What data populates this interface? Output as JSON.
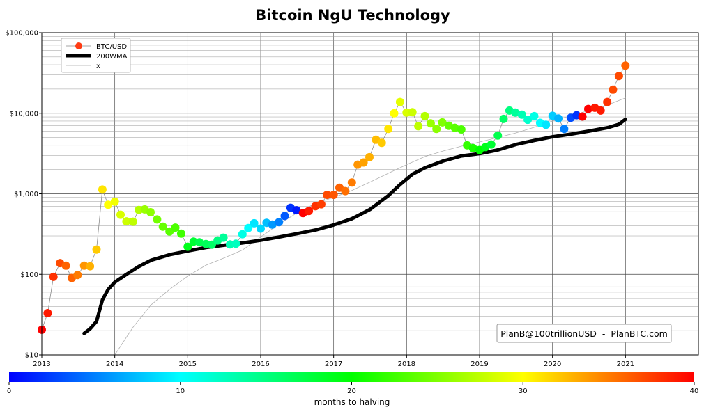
{
  "chart_data": {
    "type": "scatter",
    "title": "Bitcoin NgU Technology",
    "y_scale": "log",
    "ylim": [
      10,
      100000
    ],
    "xlim": [
      2013.0,
      2022.0
    ],
    "y_tick_labels": [
      "$10",
      "$100",
      "$1,000",
      "$10,000",
      "$100,000"
    ],
    "y_tick_values": [
      10,
      100,
      1000,
      10000,
      100000
    ],
    "x_tick_labels": [
      "2013",
      "2014",
      "2015",
      "2016",
      "2017",
      "2018",
      "2019",
      "2020",
      "2021"
    ],
    "x_tick_values": [
      2013,
      2014,
      2015,
      2016,
      2017,
      2018,
      2019,
      2020,
      2021
    ],
    "grid": true,
    "legend": {
      "position": "top-left",
      "entries": [
        "BTC/USD",
        "200WMA",
        "x"
      ]
    },
    "annotation": "PlanB@100trillionUSD  -  PlanBTC.com",
    "colorbar": {
      "label": "months to halving",
      "min": 0,
      "max": 40,
      "tick_labels": [
        "0",
        "10",
        "20",
        "30",
        "40"
      ],
      "tick_values": [
        0,
        10,
        20,
        30,
        40
      ],
      "colormap": "rainbow (blue → cyan → green → yellow → orange → red)"
    },
    "series": [
      {
        "name": "BTC/USD",
        "style": "points colored by months to halving, thin gray connecting line",
        "points": [
          {
            "x": 2013.0,
            "y": 20.5,
            "c": 40
          },
          {
            "x": 2013.08,
            "y": 33,
            "c": 39
          },
          {
            "x": 2013.16,
            "y": 93,
            "c": 38
          },
          {
            "x": 2013.25,
            "y": 138,
            "c": 37
          },
          {
            "x": 2013.33,
            "y": 128,
            "c": 36
          },
          {
            "x": 2013.41,
            "y": 90,
            "c": 36
          },
          {
            "x": 2013.49,
            "y": 98,
            "c": 35
          },
          {
            "x": 2013.58,
            "y": 128,
            "c": 34
          },
          {
            "x": 2013.66,
            "y": 126,
            "c": 33
          },
          {
            "x": 2013.75,
            "y": 203,
            "c": 32
          },
          {
            "x": 2013.83,
            "y": 1130,
            "c": 31
          },
          {
            "x": 2013.91,
            "y": 730,
            "c": 30
          },
          {
            "x": 2014.0,
            "y": 800,
            "c": 29.5
          },
          {
            "x": 2014.08,
            "y": 550,
            "c": 28.5
          },
          {
            "x": 2014.16,
            "y": 455,
            "c": 28
          },
          {
            "x": 2014.25,
            "y": 450,
            "c": 27.5
          },
          {
            "x": 2014.33,
            "y": 630,
            "c": 27
          },
          {
            "x": 2014.41,
            "y": 640,
            "c": 26
          },
          {
            "x": 2014.49,
            "y": 590,
            "c": 25.5
          },
          {
            "x": 2014.58,
            "y": 480,
            "c": 24.5
          },
          {
            "x": 2014.66,
            "y": 390,
            "c": 24
          },
          {
            "x": 2014.75,
            "y": 340,
            "c": 23.5
          },
          {
            "x": 2014.83,
            "y": 380,
            "c": 23
          },
          {
            "x": 2014.91,
            "y": 320,
            "c": 22.5
          },
          {
            "x": 2015.0,
            "y": 220,
            "c": 19
          },
          {
            "x": 2015.08,
            "y": 255,
            "c": 18
          },
          {
            "x": 2015.16,
            "y": 250,
            "c": 17
          },
          {
            "x": 2015.25,
            "y": 238,
            "c": 16.5
          },
          {
            "x": 2015.33,
            "y": 233,
            "c": 16
          },
          {
            "x": 2015.41,
            "y": 263,
            "c": 15
          },
          {
            "x": 2015.49,
            "y": 285,
            "c": 14
          },
          {
            "x": 2015.58,
            "y": 235,
            "c": 13
          },
          {
            "x": 2015.66,
            "y": 240,
            "c": 12.5
          },
          {
            "x": 2015.75,
            "y": 315,
            "c": 11
          },
          {
            "x": 2015.83,
            "y": 375,
            "c": 10
          },
          {
            "x": 2015.91,
            "y": 430,
            "c": 9
          },
          {
            "x": 2016.0,
            "y": 370,
            "c": 8.5
          },
          {
            "x": 2016.08,
            "y": 435,
            "c": 7.5
          },
          {
            "x": 2016.16,
            "y": 415,
            "c": 6
          },
          {
            "x": 2016.25,
            "y": 445,
            "c": 5
          },
          {
            "x": 2016.33,
            "y": 530,
            "c": 3.5
          },
          {
            "x": 2016.41,
            "y": 670,
            "c": 2
          },
          {
            "x": 2016.49,
            "y": 625,
            "c": 1
          },
          {
            "x": 2016.58,
            "y": 575,
            "c": 40
          },
          {
            "x": 2016.66,
            "y": 610,
            "c": 39
          },
          {
            "x": 2016.75,
            "y": 700,
            "c": 38
          },
          {
            "x": 2016.83,
            "y": 740,
            "c": 37.5
          },
          {
            "x": 2016.91,
            "y": 970,
            "c": 37
          },
          {
            "x": 2017.0,
            "y": 970,
            "c": 36.5
          },
          {
            "x": 2017.08,
            "y": 1190,
            "c": 36
          },
          {
            "x": 2017.16,
            "y": 1080,
            "c": 35.5
          },
          {
            "x": 2017.25,
            "y": 1380,
            "c": 35
          },
          {
            "x": 2017.33,
            "y": 2300,
            "c": 34
          },
          {
            "x": 2017.41,
            "y": 2450,
            "c": 33.5
          },
          {
            "x": 2017.49,
            "y": 2850,
            "c": 33
          },
          {
            "x": 2017.58,
            "y": 4700,
            "c": 32.5
          },
          {
            "x": 2017.66,
            "y": 4300,
            "c": 32
          },
          {
            "x": 2017.75,
            "y": 6400,
            "c": 31
          },
          {
            "x": 2017.83,
            "y": 10000,
            "c": 30
          },
          {
            "x": 2017.91,
            "y": 13800,
            "c": 29
          },
          {
            "x": 2018.0,
            "y": 10200,
            "c": 28.5
          },
          {
            "x": 2018.08,
            "y": 10300,
            "c": 28
          },
          {
            "x": 2018.16,
            "y": 6900,
            "c": 27.5
          },
          {
            "x": 2018.25,
            "y": 9200,
            "c": 27
          },
          {
            "x": 2018.33,
            "y": 7500,
            "c": 26
          },
          {
            "x": 2018.41,
            "y": 6400,
            "c": 25.5
          },
          {
            "x": 2018.49,
            "y": 7700,
            "c": 25
          },
          {
            "x": 2018.58,
            "y": 7000,
            "c": 24
          },
          {
            "x": 2018.66,
            "y": 6600,
            "c": 23.5
          },
          {
            "x": 2018.75,
            "y": 6300,
            "c": 23
          },
          {
            "x": 2018.83,
            "y": 4000,
            "c": 22
          },
          {
            "x": 2018.91,
            "y": 3700,
            "c": 21
          },
          {
            "x": 2019.0,
            "y": 3500,
            "c": 20
          },
          {
            "x": 2019.08,
            "y": 3800,
            "c": 19
          },
          {
            "x": 2019.16,
            "y": 4100,
            "c": 18
          },
          {
            "x": 2019.25,
            "y": 5300,
            "c": 17
          },
          {
            "x": 2019.33,
            "y": 8500,
            "c": 16
          },
          {
            "x": 2019.41,
            "y": 10800,
            "c": 15
          },
          {
            "x": 2019.49,
            "y": 10200,
            "c": 14
          },
          {
            "x": 2019.58,
            "y": 9600,
            "c": 13
          },
          {
            "x": 2019.66,
            "y": 8300,
            "c": 12
          },
          {
            "x": 2019.75,
            "y": 9200,
            "c": 11
          },
          {
            "x": 2019.83,
            "y": 7600,
            "c": 10
          },
          {
            "x": 2019.91,
            "y": 7200,
            "c": 9
          },
          {
            "x": 2020.0,
            "y": 9300,
            "c": 8
          },
          {
            "x": 2020.08,
            "y": 8600,
            "c": 7
          },
          {
            "x": 2020.16,
            "y": 6400,
            "c": 5
          },
          {
            "x": 2020.25,
            "y": 8800,
            "c": 3
          },
          {
            "x": 2020.33,
            "y": 9450,
            "c": 2
          },
          {
            "x": 2020.41,
            "y": 9100,
            "c": 40
          },
          {
            "x": 2020.49,
            "y": 11300,
            "c": 40
          },
          {
            "x": 2020.58,
            "y": 11700,
            "c": 39
          },
          {
            "x": 2020.66,
            "y": 10800,
            "c": 39
          },
          {
            "x": 2020.75,
            "y": 13800,
            "c": 38
          },
          {
            "x": 2020.83,
            "y": 19700,
            "c": 37
          },
          {
            "x": 2020.91,
            "y": 29000,
            "c": 37
          },
          {
            "x": 2021.0,
            "y": 39000,
            "c": 36
          }
        ]
      },
      {
        "name": "200WMA",
        "style": "thick black line",
        "points": [
          {
            "x": 2013.58,
            "y": 18.5
          },
          {
            "x": 2013.66,
            "y": 21
          },
          {
            "x": 2013.75,
            "y": 26
          },
          {
            "x": 2013.83,
            "y": 48
          },
          {
            "x": 2013.91,
            "y": 65
          },
          {
            "x": 2014.0,
            "y": 80
          },
          {
            "x": 2014.16,
            "y": 100
          },
          {
            "x": 2014.33,
            "y": 125
          },
          {
            "x": 2014.5,
            "y": 150
          },
          {
            "x": 2014.75,
            "y": 175
          },
          {
            "x": 2015.0,
            "y": 195
          },
          {
            "x": 2015.25,
            "y": 215
          },
          {
            "x": 2015.5,
            "y": 230
          },
          {
            "x": 2015.75,
            "y": 245
          },
          {
            "x": 2016.0,
            "y": 265
          },
          {
            "x": 2016.25,
            "y": 290
          },
          {
            "x": 2016.5,
            "y": 320
          },
          {
            "x": 2016.75,
            "y": 355
          },
          {
            "x": 2017.0,
            "y": 410
          },
          {
            "x": 2017.25,
            "y": 490
          },
          {
            "x": 2017.5,
            "y": 640
          },
          {
            "x": 2017.75,
            "y": 950
          },
          {
            "x": 2017.91,
            "y": 1300
          },
          {
            "x": 2018.08,
            "y": 1750
          },
          {
            "x": 2018.25,
            "y": 2100
          },
          {
            "x": 2018.5,
            "y": 2550
          },
          {
            "x": 2018.75,
            "y": 2950
          },
          {
            "x": 2019.0,
            "y": 3150
          },
          {
            "x": 2019.25,
            "y": 3500
          },
          {
            "x": 2019.5,
            "y": 4100
          },
          {
            "x": 2019.75,
            "y": 4600
          },
          {
            "x": 2020.0,
            "y": 5100
          },
          {
            "x": 2020.25,
            "y": 5500
          },
          {
            "x": 2020.5,
            "y": 6000
          },
          {
            "x": 2020.75,
            "y": 6600
          },
          {
            "x": 2020.91,
            "y": 7300
          },
          {
            "x": 2021.0,
            "y": 8400
          }
        ]
      },
      {
        "name": "x",
        "style": "thin gray line",
        "points": [
          {
            "x": 2014.0,
            "y": 10
          },
          {
            "x": 2014.25,
            "y": 22
          },
          {
            "x": 2014.5,
            "y": 42
          },
          {
            "x": 2014.75,
            "y": 65
          },
          {
            "x": 2015.0,
            "y": 95
          },
          {
            "x": 2015.25,
            "y": 130
          },
          {
            "x": 2015.5,
            "y": 160
          },
          {
            "x": 2015.75,
            "y": 200
          },
          {
            "x": 2016.0,
            "y": 290
          },
          {
            "x": 2016.25,
            "y": 420
          },
          {
            "x": 2016.5,
            "y": 580
          },
          {
            "x": 2016.75,
            "y": 760
          },
          {
            "x": 2017.0,
            "y": 900
          },
          {
            "x": 2017.25,
            "y": 1100
          },
          {
            "x": 2017.5,
            "y": 1400
          },
          {
            "x": 2017.75,
            "y": 1800
          },
          {
            "x": 2018.0,
            "y": 2300
          },
          {
            "x": 2018.25,
            "y": 2900
          },
          {
            "x": 2018.5,
            "y": 3400
          },
          {
            "x": 2018.75,
            "y": 3900
          },
          {
            "x": 2019.0,
            "y": 4400
          },
          {
            "x": 2019.25,
            "y": 5000
          },
          {
            "x": 2019.5,
            "y": 5700
          },
          {
            "x": 2019.75,
            "y": 6700
          },
          {
            "x": 2020.0,
            "y": 8000
          },
          {
            "x": 2020.25,
            "y": 9300
          },
          {
            "x": 2020.5,
            "y": 10800
          },
          {
            "x": 2020.75,
            "y": 12600
          },
          {
            "x": 2021.0,
            "y": 15500
          }
        ]
      }
    ]
  }
}
